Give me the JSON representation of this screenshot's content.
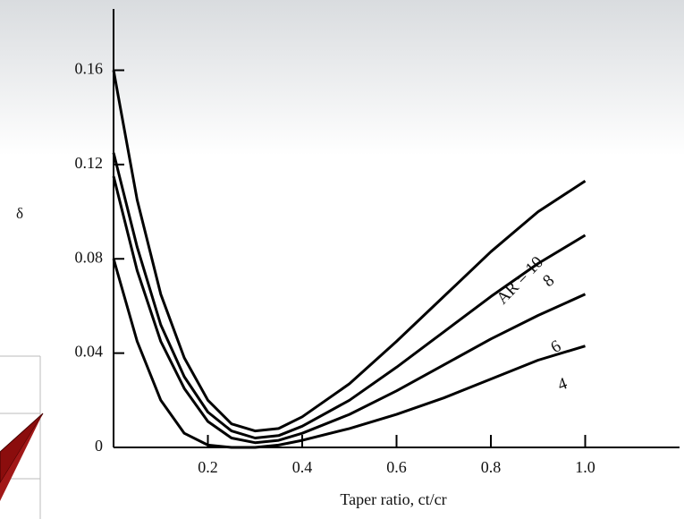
{
  "chart_data": {
    "type": "line",
    "y_label": "δ",
    "x_label": "Taper ratio, ct/cr",
    "x": [
      0,
      0.05,
      0.1,
      0.15,
      0.2,
      0.25,
      0.3,
      0.35,
      0.4,
      0.5,
      0.6,
      0.7,
      0.8,
      0.9,
      1.0
    ],
    "series": [
      {
        "name": "AR = 10",
        "color": "#000000",
        "values": [
          0.16,
          0.105,
          0.065,
          0.038,
          0.02,
          0.01,
          0.007,
          0.008,
          0.013,
          0.027,
          0.045,
          0.064,
          0.083,
          0.1,
          0.113
        ]
      },
      {
        "name": "8",
        "color": "#000000",
        "values": [
          0.125,
          0.085,
          0.052,
          0.03,
          0.015,
          0.007,
          0.004,
          0.005,
          0.009,
          0.02,
          0.034,
          0.049,
          0.064,
          0.078,
          0.09
        ]
      },
      {
        "name": "6",
        "color": "#000000",
        "values": [
          0.115,
          0.075,
          0.045,
          0.025,
          0.011,
          0.004,
          0.002,
          0.003,
          0.006,
          0.014,
          0.024,
          0.035,
          0.046,
          0.056,
          0.065
        ]
      },
      {
        "name": "4",
        "color": "#000000",
        "values": [
          0.08,
          0.045,
          0.02,
          0.006,
          0.001,
          0,
          0,
          0.001,
          0.003,
          0.008,
          0.014,
          0.021,
          0.029,
          0.037,
          0.043
        ]
      }
    ],
    "xlim": [
      0,
      1.2
    ],
    "ylim": [
      0,
      0.186
    ],
    "xticks": [
      0.2,
      0.4,
      0.6,
      0.8,
      {
        "value": 1.0,
        "label": "1.0"
      }
    ],
    "yticks": [
      0,
      0.04,
      0.08,
      0.12,
      0.16
    ],
    "grid": false
  }
}
